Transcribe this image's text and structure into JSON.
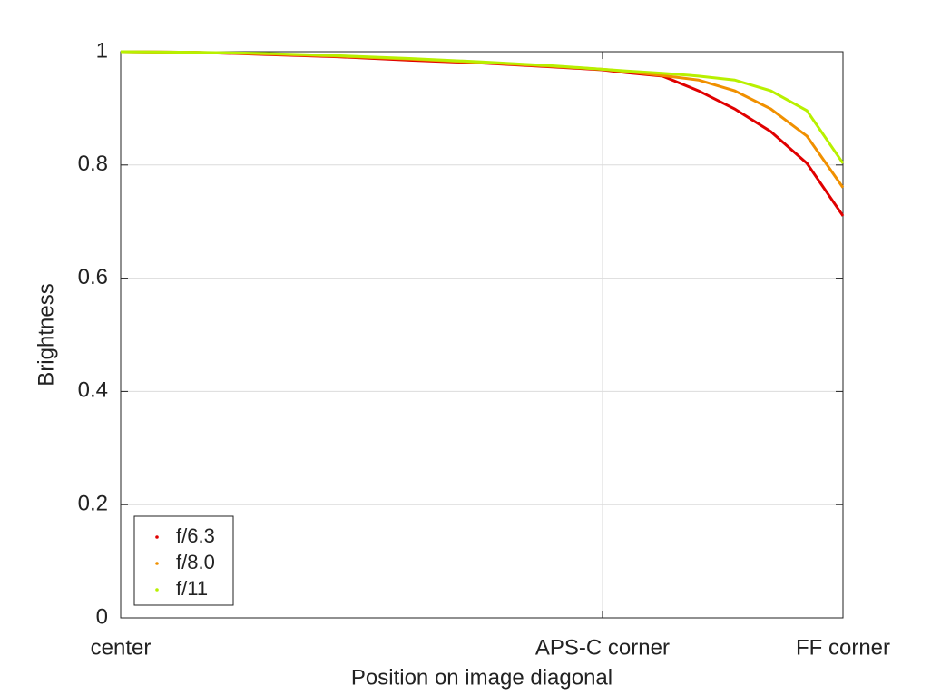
{
  "chart_data": {
    "type": "line",
    "x_label": "Position on image diagonal",
    "y_label": "Brightness",
    "x": [
      0,
      0.1,
      0.2,
      0.3,
      0.4,
      0.5,
      0.6,
      0.667,
      0.7,
      0.75,
      0.8,
      0.85,
      0.9,
      0.95,
      1.0
    ],
    "series": [
      {
        "name": "f/6.3",
        "color": "#e00000",
        "values": [
          1.0,
          0.999,
          0.995,
          0.991,
          0.985,
          0.98,
          0.973,
          0.968,
          0.963,
          0.957,
          0.931,
          0.899,
          0.859,
          0.803,
          0.71
        ]
      },
      {
        "name": "f/8.0",
        "color": "#f09000",
        "values": [
          1.0,
          0.999,
          0.996,
          0.992,
          0.987,
          0.981,
          0.974,
          0.969,
          0.965,
          0.958,
          0.95,
          0.931,
          0.899,
          0.851,
          0.76
        ]
      },
      {
        "name": "f/11",
        "color": "#b8f000",
        "values": [
          1.0,
          0.999,
          0.997,
          0.993,
          0.988,
          0.982,
          0.975,
          0.969,
          0.966,
          0.962,
          0.957,
          0.95,
          0.931,
          0.896,
          0.803
        ]
      }
    ],
    "xlim": [
      0,
      1
    ],
    "xticks": [
      {
        "value": 0,
        "label": "center"
      },
      {
        "value": 0.667,
        "label": "APS-C corner"
      },
      {
        "value": 1,
        "label": "FF corner"
      }
    ],
    "ylim": [
      0,
      1
    ],
    "yticks": [
      0,
      0.2,
      0.4,
      0.6,
      0.8,
      1
    ],
    "grid": true,
    "legend": "lower left"
  }
}
